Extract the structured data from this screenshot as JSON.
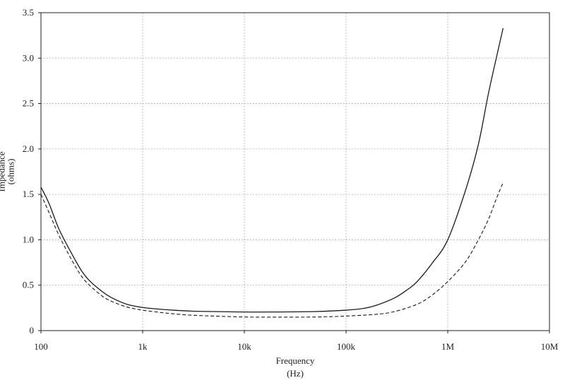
{
  "chart_data": {
    "type": "line",
    "title": "",
    "xlabel_line1": "Frequency",
    "xlabel_line2": "(Hz)",
    "ylabel_line1": "Impedance",
    "ylabel_line2": "(ohms)",
    "x_scale": "log",
    "xlim": [
      100,
      10000000
    ],
    "ylim": [
      0,
      3.5
    ],
    "x_ticks": [
      {
        "value": 100,
        "label": "100"
      },
      {
        "value": 1000,
        "label": "1k"
      },
      {
        "value": 10000,
        "label": "10k"
      },
      {
        "value": 100000,
        "label": "100k"
      },
      {
        "value": 1000000,
        "label": "1M"
      },
      {
        "value": 10000000,
        "label": "10M"
      }
    ],
    "y_ticks": [
      {
        "value": 0,
        "label": "0"
      },
      {
        "value": 0.5,
        "label": "0.5"
      },
      {
        "value": 1,
        "label": "1.0"
      },
      {
        "value": 1.5,
        "label": "1.5"
      },
      {
        "value": 2,
        "label": "2.0"
      },
      {
        "value": 2.5,
        "label": "2.5"
      },
      {
        "value": 3,
        "label": "3.0"
      },
      {
        "value": 3.5,
        "label": "3.5"
      }
    ],
    "grid": true,
    "legend": "none",
    "series": [
      {
        "style": "solid",
        "color": "#1a1a1a",
        "points": [
          [
            100,
            1.58
          ],
          [
            120,
            1.4
          ],
          [
            150,
            1.12
          ],
          [
            200,
            0.85
          ],
          [
            250,
            0.66
          ],
          [
            300,
            0.55
          ],
          [
            400,
            0.43
          ],
          [
            500,
            0.36
          ],
          [
            700,
            0.29
          ],
          [
            1000,
            0.255
          ],
          [
            1500,
            0.235
          ],
          [
            2000,
            0.225
          ],
          [
            3000,
            0.215
          ],
          [
            5000,
            0.21
          ],
          [
            10000,
            0.205
          ],
          [
            20000,
            0.205
          ],
          [
            50000,
            0.21
          ],
          [
            100000,
            0.225
          ],
          [
            150000,
            0.245
          ],
          [
            200000,
            0.28
          ],
          [
            300000,
            0.36
          ],
          [
            400000,
            0.45
          ],
          [
            500000,
            0.54
          ],
          [
            700000,
            0.74
          ],
          [
            1000000,
            1.0
          ],
          [
            1500000,
            1.55
          ],
          [
            2000000,
            2.05
          ],
          [
            2500000,
            2.6
          ],
          [
            3000000,
            3.0
          ],
          [
            3500000,
            3.33
          ]
        ]
      },
      {
        "style": "dashed",
        "color": "#1a1a1a",
        "points": [
          [
            100,
            1.5
          ],
          [
            120,
            1.3
          ],
          [
            150,
            1.05
          ],
          [
            200,
            0.78
          ],
          [
            250,
            0.6
          ],
          [
            300,
            0.5
          ],
          [
            400,
            0.38
          ],
          [
            500,
            0.32
          ],
          [
            700,
            0.26
          ],
          [
            1000,
            0.225
          ],
          [
            1500,
            0.2
          ],
          [
            2000,
            0.185
          ],
          [
            3000,
            0.17
          ],
          [
            5000,
            0.16
          ],
          [
            10000,
            0.15
          ],
          [
            20000,
            0.148
          ],
          [
            50000,
            0.15
          ],
          [
            100000,
            0.16
          ],
          [
            200000,
            0.18
          ],
          [
            300000,
            0.21
          ],
          [
            500000,
            0.29
          ],
          [
            700000,
            0.39
          ],
          [
            1000000,
            0.54
          ],
          [
            1500000,
            0.76
          ],
          [
            2000000,
            1.0
          ],
          [
            2500000,
            1.22
          ],
          [
            3000000,
            1.45
          ],
          [
            3500000,
            1.63
          ]
        ]
      }
    ]
  }
}
